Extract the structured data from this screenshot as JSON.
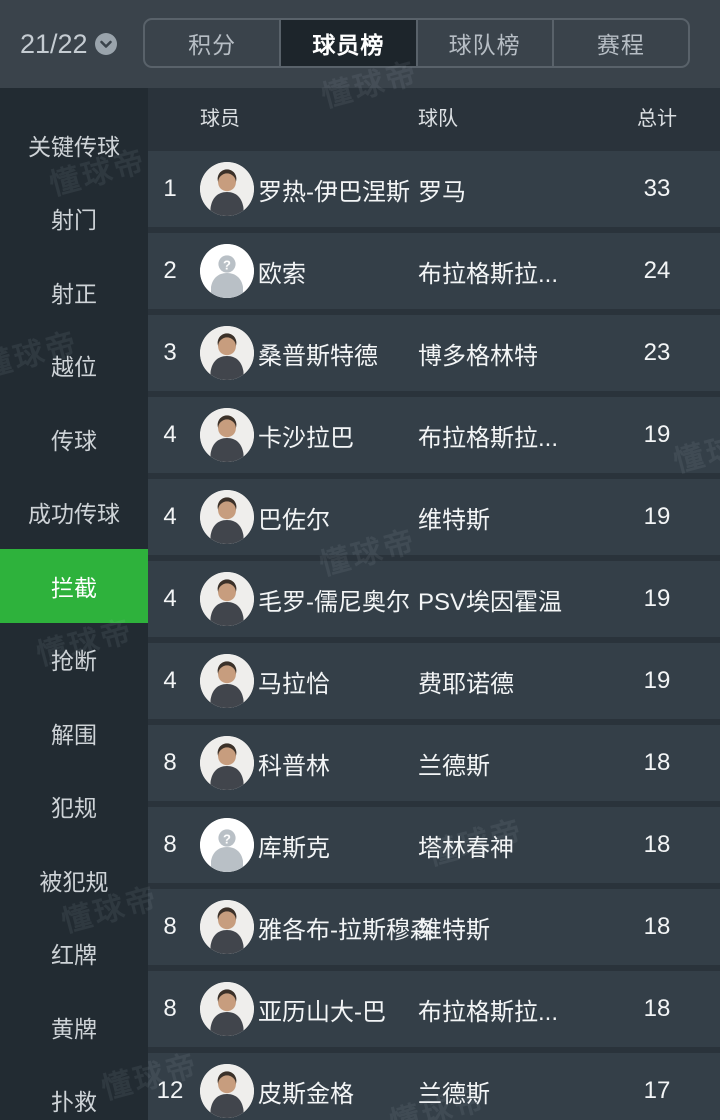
{
  "app": {
    "season": "21/22",
    "watermark": "懂球帝"
  },
  "topbar": {
    "tabs": [
      {
        "label": "积分",
        "active": false
      },
      {
        "label": "球员榜",
        "active": true
      },
      {
        "label": "球队榜",
        "active": false
      },
      {
        "label": "赛程",
        "active": false
      }
    ]
  },
  "sidebar": {
    "items": [
      {
        "label": "关键传球",
        "selected": false
      },
      {
        "label": "射门",
        "selected": false
      },
      {
        "label": "射正",
        "selected": false
      },
      {
        "label": "越位",
        "selected": false
      },
      {
        "label": "传球",
        "selected": false
      },
      {
        "label": "成功传球",
        "selected": false
      },
      {
        "label": "拦截",
        "selected": true
      },
      {
        "label": "抢断",
        "selected": false
      },
      {
        "label": "解围",
        "selected": false
      },
      {
        "label": "犯规",
        "selected": false
      },
      {
        "label": "被犯规",
        "selected": false
      },
      {
        "label": "红牌",
        "selected": false
      },
      {
        "label": "黄牌",
        "selected": false
      },
      {
        "label": "扑救",
        "selected": false
      }
    ]
  },
  "table": {
    "columns": {
      "player": "球员",
      "team": "球队",
      "total": "总计"
    },
    "rows": [
      {
        "rank": "1",
        "player": "罗热-伊巴涅斯",
        "team": "罗马",
        "total": "33",
        "avatar": "photo"
      },
      {
        "rank": "2",
        "player": "欧索",
        "team": "布拉格斯拉...",
        "total": "24",
        "avatar": "placeholder"
      },
      {
        "rank": "3",
        "player": "桑普斯特德",
        "team": "博多格林特",
        "total": "23",
        "avatar": "photo"
      },
      {
        "rank": "4",
        "player": "卡沙拉巴",
        "team": "布拉格斯拉...",
        "total": "19",
        "avatar": "photo"
      },
      {
        "rank": "4",
        "player": "巴佐尔",
        "team": "维特斯",
        "total": "19",
        "avatar": "photo"
      },
      {
        "rank": "4",
        "player": "毛罗-儒尼奥尔",
        "team": "PSV埃因霍温",
        "total": "19",
        "avatar": "photo"
      },
      {
        "rank": "4",
        "player": "马拉恰",
        "team": "费耶诺德",
        "total": "19",
        "avatar": "photo"
      },
      {
        "rank": "8",
        "player": "科普林",
        "team": "兰德斯",
        "total": "18",
        "avatar": "photo"
      },
      {
        "rank": "8",
        "player": "库斯克",
        "team": "塔林春神",
        "total": "18",
        "avatar": "placeholder"
      },
      {
        "rank": "8",
        "player": "雅各布-拉斯穆森",
        "team": "维特斯",
        "total": "18",
        "avatar": "photo"
      },
      {
        "rank": "8",
        "player": "亚历山大-巴",
        "team": "布拉格斯拉...",
        "total": "18",
        "avatar": "photo"
      },
      {
        "rank": "12",
        "player": "皮斯金格",
        "team": "兰德斯",
        "total": "17",
        "avatar": "photo"
      }
    ]
  },
  "colors": {
    "accent_green": "#2eb23c",
    "topbar_bg": "#3a434b",
    "sidebar_bg": "#222b32",
    "content_bg": "#2a333b",
    "row_bg": "#343f48",
    "active_tab_bg": "#1d252b"
  }
}
